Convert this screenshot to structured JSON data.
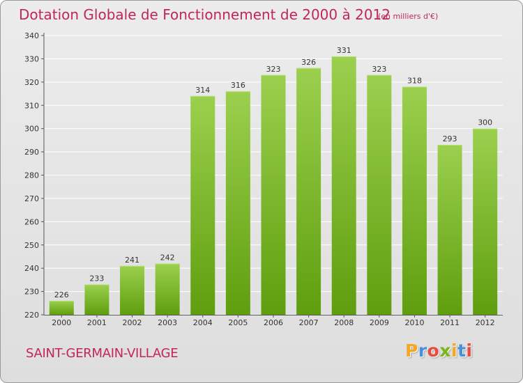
{
  "header": {
    "title": "Dotation Globale de Fonctionnement de 2000 à 2012",
    "unit": "(en milliers d'€)"
  },
  "footer": {
    "commune": "SAINT-GERMAIN-VILLAGE",
    "brand": {
      "letters": [
        "P",
        "r",
        "o",
        "x",
        "i",
        "t",
        "i"
      ],
      "colors": [
        "#f5a623",
        "#4a90d9",
        "#e94b3c",
        "#7cb518",
        "#f5a623",
        "#4a90d9",
        "#e94b3c"
      ]
    }
  },
  "colors": {
    "accent": "#c2255c",
    "bar_top": "#9bd04e",
    "bar_bottom": "#5f9e0e",
    "grid": "#ffffff",
    "axis": "#555555"
  },
  "chart_data": {
    "type": "bar",
    "categories": [
      "2000",
      "2001",
      "2002",
      "2003",
      "2004",
      "2005",
      "2006",
      "2007",
      "2008",
      "2009",
      "2010",
      "2011",
      "2012"
    ],
    "values": [
      226,
      233,
      241,
      242,
      314,
      316,
      323,
      326,
      331,
      323,
      318,
      293,
      300
    ],
    "title": "Dotation Globale de Fonctionnement de 2000 à 2012",
    "subtitle": "(en milliers d'€)",
    "xlabel": "",
    "ylabel": "",
    "ylim": [
      220,
      340
    ],
    "yticks": [
      220,
      230,
      240,
      250,
      260,
      270,
      280,
      290,
      300,
      310,
      320,
      330,
      340
    ],
    "grid": true,
    "data_labels": true
  }
}
